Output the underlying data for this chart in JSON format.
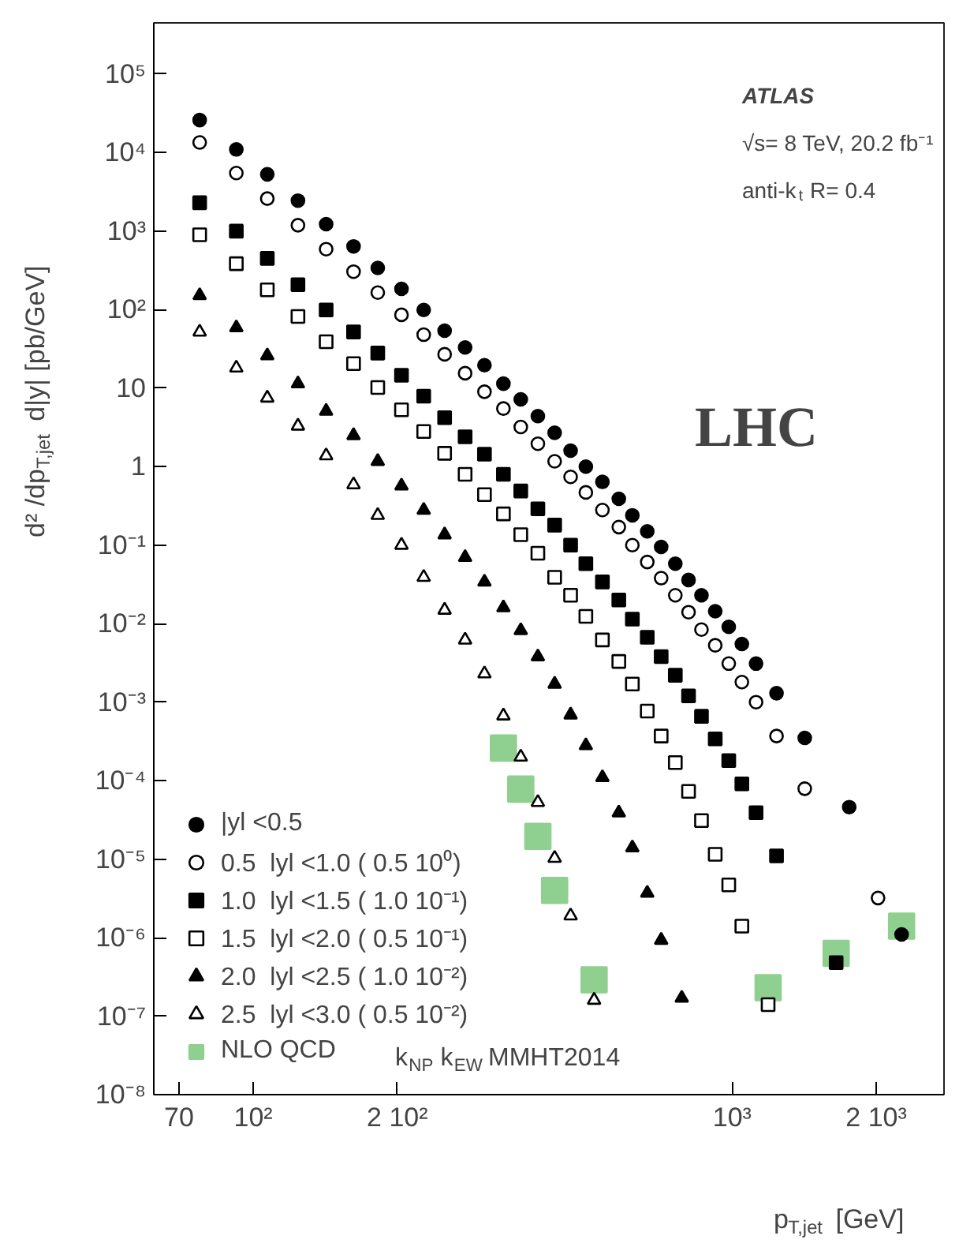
{
  "chart_data": {
    "type": "scatter",
    "xlabel": "p$_{T,jet}$ [GeV]",
    "ylabel": "d² /dp$_{T,jet}$ d|y| [pb/GeV]",
    "annotations": [
      "ATLAS",
      "√s= 8 TeV, 20.2 fb⁻¹",
      "anti-k$_{t}$ R= 0.4",
      "LHC",
      "k$_{NP}$ k$_{EW}$ MMHT2014"
    ],
    "x": [
      77.3,
      92.2,
      107,
      124,
      142,
      162,
      182,
      204,
      227,
      251,
      277,
      304,
      333,
      362,
      393,
      426,
      460,
      495,
      536,
      580,
      619,
      665,
      711,
      761,
      811,
      863,
      922,
      984,
      1048,
      1122,
      1238,
      1418,
      1756,
      2259
    ],
    "series": [
      {
        "name": "|yl <0.5",
        "color": "#000000",
        "marker": "circle",
        "values": [
          26000,
          11000,
          5300,
          2450,
          1230,
          640,
          340,
          184,
          99,
          54,
          33,
          19.6,
          11.4,
          7.2,
          4.4,
          2.7,
          1.6,
          1.0,
          0.64,
          0.39,
          0.24,
          0.15,
          0.095,
          0.058,
          0.036,
          0.023,
          0.0144,
          0.0091,
          0.0055,
          0.0031,
          0.0013,
          0.00035,
          4.6e-05,
          1.1e-06
        ]
      },
      {
        "name": "0.5  lyl <1.0 ( 0.5 10⁰)",
        "color": "#000000",
        "marker": "circle_open",
        "x": [
          77.3,
          92.2,
          107,
          124,
          142,
          162,
          182,
          204,
          227,
          251,
          277,
          304,
          333,
          362,
          393,
          426,
          460,
          495,
          536,
          580,
          619,
          665,
          711,
          761,
          811,
          863,
          922,
          984,
          1048,
          1122,
          1238,
          1418,
          2017
        ],
        "values": [
          13500,
          5500,
          2600,
          1190,
          590,
          305,
          165,
          86,
          48,
          27,
          15.5,
          9.0,
          5.5,
          3.2,
          1.96,
          1.17,
          0.74,
          0.47,
          0.28,
          0.17,
          0.1,
          0.061,
          0.038,
          0.023,
          0.014,
          0.0084,
          0.0053,
          0.0031,
          0.0018,
          0.001,
          0.00037,
          7.9e-05,
          3.2e-06
        ]
      },
      {
        "name": "1.0  lyl <1.5 ( 1.0 10⁻¹)",
        "color": "#000000",
        "marker": "square",
        "x": [
          77.3,
          92.2,
          107,
          124,
          142,
          162,
          182,
          204,
          227,
          251,
          277,
          304,
          333,
          362,
          393,
          426,
          460,
          495,
          536,
          580,
          619,
          665,
          711,
          761,
          811,
          863,
          922,
          984,
          1048,
          1122,
          1238,
          1649
        ],
        "values": [
          2300,
          1000,
          450,
          208,
          99,
          52,
          28,
          14.6,
          7.9,
          4.2,
          2.4,
          1.44,
          0.8,
          0.49,
          0.29,
          0.18,
          0.1,
          0.058,
          0.034,
          0.02,
          0.0114,
          0.0067,
          0.0038,
          0.0022,
          0.0012,
          0.00066,
          0.00034,
          0.00018,
          9.1e-05,
          3.9e-05,
          1.1e-05,
          4.8e-07
        ]
      },
      {
        "name": "1.5  lyl <2.0 ( 0.5 10⁻¹)",
        "color": "#000000",
        "marker": "square_open",
        "x": [
          77.3,
          92.2,
          107,
          124,
          142,
          162,
          182,
          204,
          227,
          251,
          277,
          304,
          333,
          362,
          393,
          426,
          460,
          495,
          536,
          580,
          619,
          665,
          711,
          761,
          811,
          863,
          922,
          984,
          1048,
          1189
        ],
        "values": [
          900,
          385,
          179,
          82,
          39,
          20.5,
          10.2,
          5.3,
          2.8,
          1.48,
          0.8,
          0.44,
          0.25,
          0.136,
          0.079,
          0.039,
          0.023,
          0.0124,
          0.0062,
          0.0033,
          0.0017,
          0.00077,
          0.00037,
          0.00017,
          7.3e-05,
          3.1e-05,
          1.15e-05,
          4.7e-06,
          1.4e-06,
          1.4e-07
        ]
      },
      {
        "name": "2.0  lyl <2.5 ( 1.0 10⁻²)",
        "color": "#000000",
        "marker": "triangle",
        "x": [
          77.3,
          92.2,
          107,
          124,
          142,
          162,
          182,
          204,
          227,
          251,
          277,
          304,
          333,
          362,
          393,
          426,
          460,
          495,
          536,
          580,
          619,
          665,
          711,
          785
        ],
        "values": [
          152,
          59,
          26,
          11.4,
          5.1,
          2.5,
          1.17,
          0.57,
          0.28,
          0.136,
          0.07,
          0.034,
          0.016,
          0.0082,
          0.0038,
          0.0017,
          0.00069,
          0.00028,
          0.00011,
          3.9e-05,
          1.4e-05,
          3.7e-06,
          9.3e-07,
          1.7e-07
        ]
      },
      {
        "name": "2.5  lyl <3.0 ( 0.5 10⁻²)",
        "color": "#000000",
        "marker": "triangle_open",
        "x": [
          77.3,
          92.2,
          107,
          124,
          142,
          162,
          182,
          204,
          227,
          251,
          277,
          304,
          333,
          362,
          393,
          426,
          460,
          515
        ],
        "values": [
          52,
          18.1,
          7.5,
          3.3,
          1.38,
          0.59,
          0.24,
          0.1,
          0.039,
          0.0149,
          0.0062,
          0.0023,
          0.00067,
          0.0002,
          5.3e-05,
          1.03e-05,
          1.9e-06,
          1.6e-07
        ]
      },
      {
        "name": "NLO QCD",
        "color": "#8fcf8f",
        "marker": "square",
        "x": [
          333,
          362,
          393,
          426,
          515,
          1189,
          1649,
          2259
        ],
        "values": [
          0.00026,
          7.8e-05,
          1.95e-05,
          4e-06,
          2.9e-07,
          2.3e-07,
          6.3e-07,
          1.4e-06
        ]
      }
    ],
    "xlim": [
      62,
      2770
    ],
    "ylim": [
      1e-08,
      450000
    ],
    "xticks": [
      70,
      {
        "value": 100,
        "label": "10²"
      },
      {
        "value": 200,
        "label": "2 10²"
      },
      {
        "value": 1000,
        "label": "10³"
      },
      {
        "value": 2000,
        "label": "2 10³"
      }
    ],
    "yticks": [
      {
        "value": 1e-08,
        "label": "10⁻⁸"
      },
      {
        "value": 1e-07,
        "label": "10⁻⁷"
      },
      {
        "value": 1e-06,
        "label": "10⁻⁶"
      },
      {
        "value": 1e-05,
        "label": "10⁻⁵"
      },
      {
        "value": 0.0001,
        "label": "10⁻⁴"
      },
      {
        "value": 0.001,
        "label": "10⁻³"
      },
      {
        "value": 0.01,
        "label": "10⁻²"
      },
      {
        "value": 0.1,
        "label": "10⁻¹"
      },
      1,
      10,
      {
        "value": 100,
        "label": "10²"
      },
      {
        "value": 1000,
        "label": "10³"
      },
      {
        "value": 10000,
        "label": "10⁴"
      },
      {
        "value": 100000,
        "label": "10⁵"
      }
    ],
    "log": "xy",
    "grid": false,
    "legend": "bottom left"
  }
}
